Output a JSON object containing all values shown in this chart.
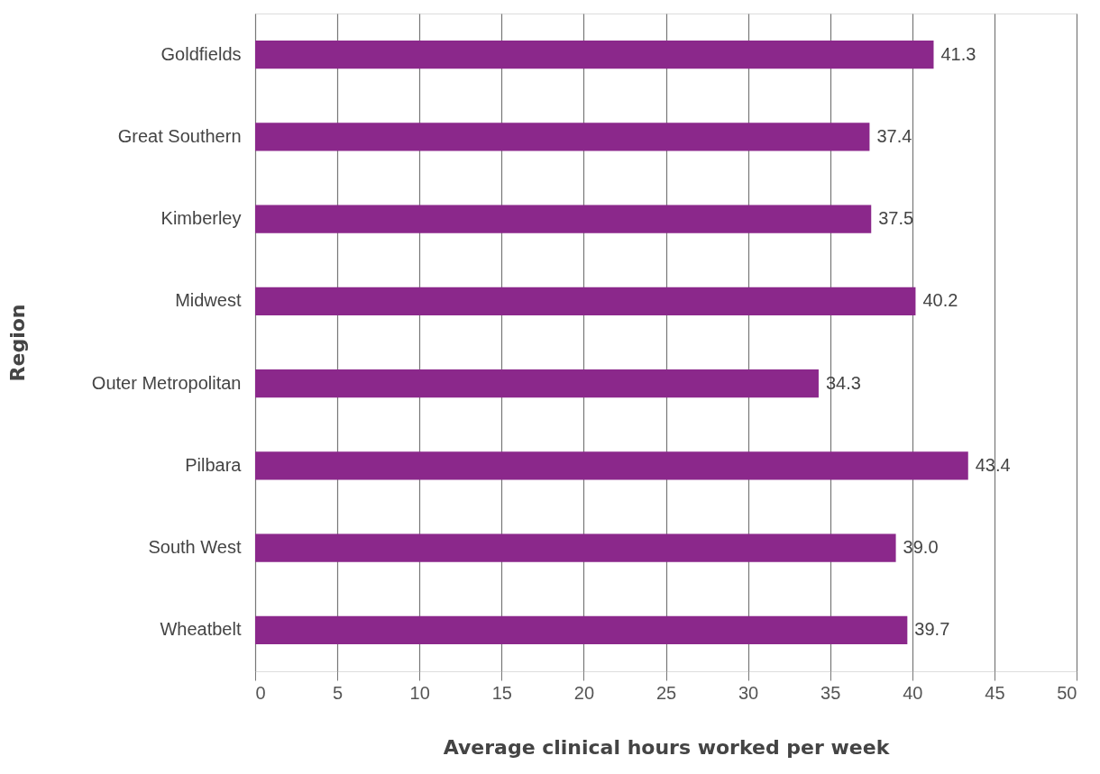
{
  "chart_data": {
    "type": "bar",
    "orientation": "horizontal",
    "xlabel": "Average clinical hours worked per week",
    "ylabel": "Region",
    "categories": [
      "Goldfields",
      "Great Southern",
      "Kimberley",
      "Midwest",
      "Outer Metropolitan",
      "Pilbara",
      "South West",
      "Wheatbelt"
    ],
    "values": [
      41.3,
      37.4,
      37.5,
      40.2,
      34.3,
      43.4,
      39.0,
      39.7
    ],
    "color": "#8b288b",
    "xlim": [
      0,
      50
    ],
    "xticks": [
      0,
      5,
      10,
      15,
      20,
      25,
      30,
      35,
      40,
      45,
      50
    ],
    "grid": "x",
    "value_labels": [
      "41.3",
      "37.4",
      "37.5",
      "40.2",
      "34.3",
      "43.4",
      "39.0",
      "39.7"
    ]
  }
}
